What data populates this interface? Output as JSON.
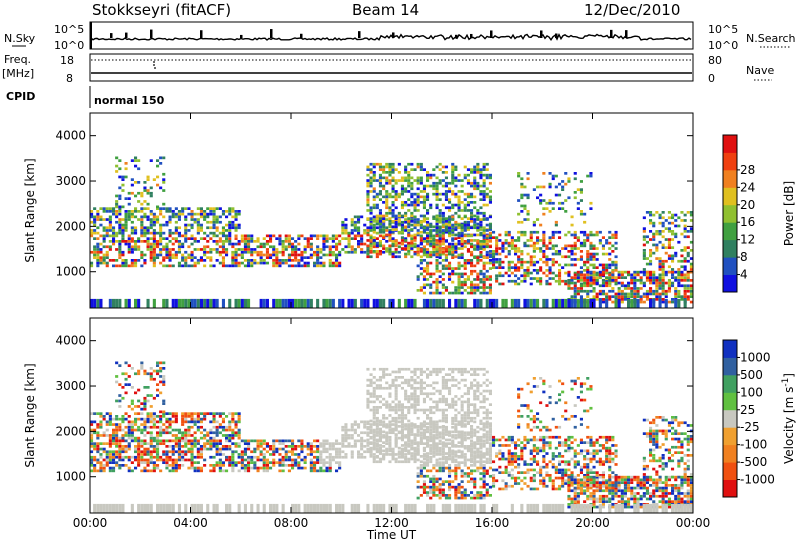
{
  "header": {
    "station": "Stokkseyri (fitACF)",
    "beam": "Beam 14",
    "date": "12/Dec/2010"
  },
  "top_panels": {
    "nsky_label": "N.Sky",
    "nsky_ticks": [
      "10^5",
      "10^0"
    ],
    "nsearch_label": "N.Search",
    "freq_label": "Freq.",
    "freq_unit": "[MHz]",
    "freq_ticks": [
      "18",
      "8"
    ],
    "nave_label": "Nave",
    "nave_ticks": [
      "80",
      "0"
    ],
    "cpid_label": "CPID",
    "cpid_value": "normal 150"
  },
  "chart_data": [
    {
      "type": "heatmap",
      "name": "power-panel",
      "xlabel": "",
      "ylabel": "Slant Range [km]",
      "xlim": [
        0,
        24
      ],
      "ylim": [
        200,
        4500
      ],
      "y_ticks": [
        1000,
        2000,
        3000,
        4000
      ],
      "x_tick_labels": [
        "00:00",
        "04:00",
        "08:00",
        "12:00",
        "16:00",
        "20:00",
        "00:00"
      ],
      "colorbar": {
        "label": "Power [dB]",
        "ticks": [
          "4",
          "8",
          "12",
          "16",
          "20",
          "24",
          "28"
        ],
        "colors": [
          "#1010e0",
          "#2050c0",
          "#308060",
          "#40a040",
          "#90c030",
          "#e0c020",
          "#f08020",
          "#f04010",
          "#e01010"
        ]
      }
    },
    {
      "type": "heatmap",
      "name": "velocity-panel",
      "xlabel": "Time UT",
      "ylabel": "Slant Range [km]",
      "xlim": [
        0,
        24
      ],
      "ylim": [
        200,
        4500
      ],
      "y_ticks": [
        1000,
        2000,
        3000,
        4000
      ],
      "x_tick_labels": [
        "00:00",
        "04:00",
        "08:00",
        "12:00",
        "16:00",
        "20:00",
        "00:00"
      ],
      "colorbar": {
        "label": "Velocity [m s",
        "label_sup": "-1",
        "label_end": "]",
        "ticks": [
          "-1000",
          "-500",
          "-100",
          "-25",
          "25",
          "100",
          "500",
          "1000"
        ],
        "colors": [
          "#e01010",
          "#f05010",
          "#f08020",
          "#f0a030",
          "#c8c8c0",
          "#60c040",
          "#40a060",
          "#3060a0",
          "#1030c0"
        ]
      }
    }
  ]
}
